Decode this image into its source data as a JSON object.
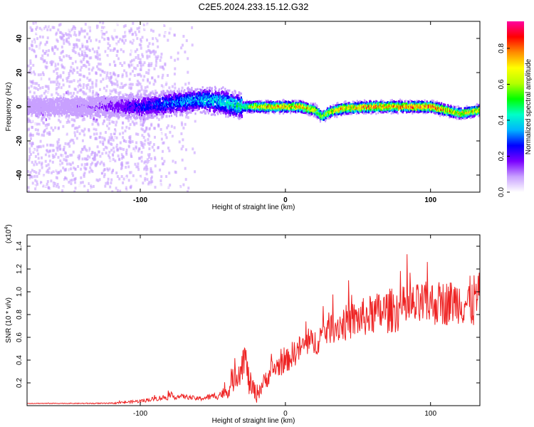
{
  "title": "C2E5.2024.233.15.12.G32",
  "chart_data": [
    {
      "type": "heatmap",
      "title": "C2E5.2024.233.15.12.G32",
      "xlabel": "Height of straight line (km)",
      "ylabel": "Frequency (Hz)",
      "xlim": [
        -178,
        134
      ],
      "ylim": [
        -50,
        50
      ],
      "xticks": [
        -100,
        0,
        100
      ],
      "yticks": [
        -40,
        -20,
        0,
        20,
        40
      ],
      "colorbar": {
        "label": "Normalized spectral amplitude",
        "range": [
          0,
          0.95
        ],
        "ticks": [
          "0.0",
          "0.2",
          "0.4",
          "0.6",
          "0.8"
        ],
        "colors": [
          "#ffffff",
          "#c8a0ff",
          "#7a00ff",
          "#0000ff",
          "#00b4ff",
          "#00ffc8",
          "#00ff00",
          "#b4ff00",
          "#ffff00",
          "#ff8c00",
          "#ff0000",
          "#ff00a0"
        ]
      },
      "ridge": {
        "x": [
          -178,
          -150,
          -120,
          -100,
          -80,
          -60,
          -45,
          -30,
          -20,
          -10,
          0,
          10,
          20,
          25,
          30,
          40,
          60,
          80,
          100,
          110,
          120,
          134
        ],
        "frequency": [
          0,
          0,
          0,
          0,
          2,
          4,
          3,
          0,
          0,
          0,
          0,
          0,
          -2,
          -6,
          -3,
          -1,
          0,
          0,
          0,
          -2,
          -4,
          -2
        ],
        "amplitude": [
          0.1,
          0.1,
          0.15,
          0.25,
          0.3,
          0.35,
          0.4,
          0.45,
          0.7,
          0.75,
          0.75,
          0.75,
          0.7,
          0.6,
          0.7,
          0.75,
          0.8,
          0.8,
          0.8,
          0.75,
          0.7,
          0.7
        ]
      },
      "scatter_region": {
        "x": [
          -178,
          -100
        ],
        "frequency_spread": [
          -50,
          50
        ]
      }
    },
    {
      "type": "line",
      "xlabel": "Height of straight line (km)",
      "ylabel": "SNR (10 * v/v)",
      "y_multiplier": "(x10",
      "y_multiplier_exp": "4",
      "y_multiplier_close": ")",
      "xlim": [
        -178,
        134
      ],
      "ylim": [
        0,
        1.5
      ],
      "xticks": [
        -100,
        0,
        100
      ],
      "yticks": [
        "0.2",
        "0.4",
        "0.6",
        "0.8",
        "1.0",
        "1.2",
        "1.4"
      ],
      "color": "#ee2222",
      "series": [
        {
          "x": [
            -178,
            -150,
            -120,
            -100,
            -90,
            -80,
            -70,
            -60,
            -50,
            -40,
            -35,
            -30,
            -28,
            -25,
            -20,
            -15,
            -10,
            -5,
            0,
            5,
            10,
            15,
            20,
            25,
            30,
            40,
            50,
            60,
            70,
            80,
            90,
            100,
            110,
            120,
            125,
            130,
            134
          ],
          "values": [
            0.02,
            0.02,
            0.02,
            0.04,
            0.06,
            0.08,
            0.08,
            0.06,
            0.08,
            0.12,
            0.25,
            0.35,
            0.45,
            0.2,
            0.1,
            0.2,
            0.3,
            0.35,
            0.38,
            0.45,
            0.5,
            0.55,
            0.55,
            0.62,
            0.68,
            0.72,
            0.76,
            0.8,
            0.83,
            0.85,
            0.87,
            0.9,
            0.9,
            0.92,
            0.9,
            0.92,
            0.95
          ],
          "noise": [
            0.003,
            0.003,
            0.005,
            0.015,
            0.02,
            0.03,
            0.02,
            0.02,
            0.03,
            0.06,
            0.12,
            0.15,
            0.15,
            0.12,
            0.08,
            0.08,
            0.1,
            0.1,
            0.1,
            0.12,
            0.12,
            0.12,
            0.12,
            0.14,
            0.14,
            0.16,
            0.17,
            0.18,
            0.2,
            0.2,
            0.2,
            0.2,
            0.2,
            0.2,
            0.22,
            0.25,
            0.22
          ]
        }
      ]
    }
  ]
}
